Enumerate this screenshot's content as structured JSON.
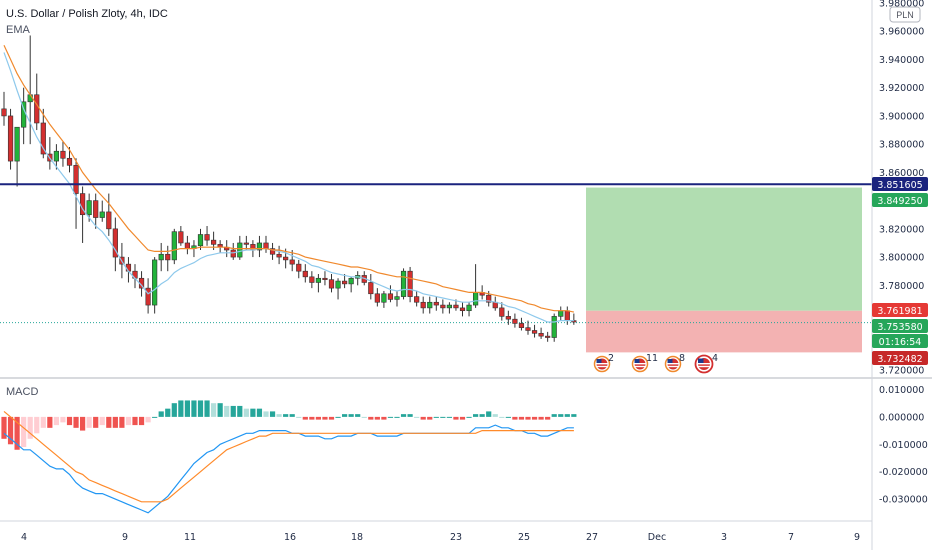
{
  "header": {
    "title": "U.S. Dollar / Polish Zloty, 4h, IDC",
    "indicator": "EMA",
    "currency": "PLN"
  },
  "macd": {
    "label": "MACD"
  },
  "colors": {
    "up": "#26a69a",
    "upBody": "#22b33a",
    "down": "#d32f2f",
    "emaFast": "#8ec9ec",
    "emaSlow": "#f0892d",
    "hline": "#1a237e",
    "profit": "#a9d9a9",
    "loss": "#f2aaaa",
    "macdLine": "#2196f3",
    "signalLine": "#ff8a2a",
    "histUpStrong": "#26a69a",
    "histUpWeak": "#b2dfdb",
    "histDownStrong": "#ef5350",
    "histDownWeak": "#ffcdd2"
  },
  "chart_data": [
    {
      "type": "candlestick",
      "ylim": [
        3.72,
        3.98
      ],
      "y_ticks": [
        "3.980000",
        "3.960000",
        "3.940000",
        "3.920000",
        "3.900000",
        "3.880000",
        "3.860000",
        "3.840000",
        "3.820000",
        "3.800000",
        "3.780000",
        "3.760000",
        "3.740000",
        "3.720000"
      ],
      "x_ticks": [
        "4",
        "9",
        "11",
        "16",
        "18",
        "23",
        "25",
        "27",
        "Dec",
        "3",
        "7",
        "9"
      ],
      "horizontal_line": {
        "value": 3.851605,
        "label": "3.851605"
      },
      "position": {
        "entry": 3.761981,
        "entry_label": "3.761981",
        "take_profit": 3.84925,
        "take_profit_label": "3.849250",
        "stop_loss": 3.732482,
        "stop_loss_label": "3.732482"
      },
      "last_price": {
        "value": 3.75358,
        "label": "3.753580",
        "countdown": "01:16:54"
      },
      "event_counts": [
        "2",
        "11",
        "8",
        "4"
      ],
      "candles": [
        [
          3.905,
          3.917,
          3.893,
          3.9
        ],
        [
          3.9,
          3.905,
          3.862,
          3.868
        ],
        [
          3.868,
          3.89,
          3.85,
          3.892
        ],
        [
          3.892,
          3.92,
          3.88,
          3.91
        ],
        [
          3.91,
          3.957,
          3.88,
          3.915
        ],
        [
          3.915,
          3.93,
          3.89,
          3.895
        ],
        [
          3.895,
          3.905,
          3.87,
          3.873
        ],
        [
          3.873,
          3.885,
          3.862,
          3.868
        ],
        [
          3.868,
          3.88,
          3.862,
          3.875
        ],
        [
          3.875,
          3.882,
          3.864,
          3.87
        ],
        [
          3.87,
          3.878,
          3.86,
          3.865
        ],
        [
          3.865,
          3.87,
          3.82,
          3.845
        ],
        [
          3.845,
          3.85,
          3.81,
          3.83
        ],
        [
          3.83,
          3.845,
          3.825,
          3.84
        ],
        [
          3.84,
          3.845,
          3.82,
          3.828
        ],
        [
          3.828,
          3.84,
          3.825,
          3.832
        ],
        [
          3.832,
          3.845,
          3.815,
          3.82
        ],
        [
          3.82,
          3.828,
          3.79,
          3.8
        ],
        [
          3.8,
          3.81,
          3.785,
          3.795
        ],
        [
          3.795,
          3.8,
          3.782,
          3.79
        ],
        [
          3.79,
          3.795,
          3.778,
          3.785
        ],
        [
          3.785,
          3.79,
          3.772,
          3.778
        ],
        [
          3.778,
          3.785,
          3.76,
          3.766
        ],
        [
          3.766,
          3.8,
          3.76,
          3.798
        ],
        [
          3.798,
          3.81,
          3.79,
          3.802
        ],
        [
          3.802,
          3.808,
          3.79,
          3.798
        ],
        [
          3.798,
          3.82,
          3.795,
          3.818
        ],
        [
          3.818,
          3.822,
          3.808,
          3.81
        ],
        [
          3.81,
          3.815,
          3.802,
          3.806
        ],
        [
          3.806,
          3.812,
          3.8,
          3.808
        ],
        [
          3.808,
          3.82,
          3.805,
          3.816
        ],
        [
          3.816,
          3.822,
          3.808,
          3.812
        ],
        [
          3.812,
          3.818,
          3.805,
          3.809
        ],
        [
          3.809,
          3.812,
          3.803,
          3.807
        ],
        [
          3.807,
          3.812,
          3.8,
          3.805
        ],
        [
          3.805,
          3.81,
          3.798,
          3.8
        ],
        [
          3.8,
          3.815,
          3.798,
          3.81
        ],
        [
          3.81,
          3.815,
          3.805,
          3.809
        ],
        [
          3.809,
          3.812,
          3.8,
          3.805
        ],
        [
          3.805,
          3.815,
          3.8,
          3.81
        ],
        [
          3.81,
          3.815,
          3.803,
          3.806
        ],
        [
          3.806,
          3.81,
          3.798,
          3.802
        ],
        [
          3.802,
          3.808,
          3.795,
          3.8
        ],
        [
          3.8,
          3.806,
          3.792,
          3.798
        ],
        [
          3.798,
          3.805,
          3.79,
          3.795
        ],
        [
          3.795,
          3.798,
          3.785,
          3.79
        ],
        [
          3.79,
          3.795,
          3.782,
          3.786
        ],
        [
          3.786,
          3.79,
          3.778,
          3.782
        ],
        [
          3.782,
          3.788,
          3.775,
          3.785
        ],
        [
          3.785,
          3.79,
          3.78,
          3.784
        ],
        [
          3.784,
          3.788,
          3.775,
          3.778
        ],
        [
          3.778,
          3.785,
          3.77,
          3.783
        ],
        [
          3.783,
          3.788,
          3.778,
          3.781
        ],
        [
          3.781,
          3.786,
          3.775,
          3.785
        ],
        [
          3.785,
          3.79,
          3.78,
          3.787
        ],
        [
          3.787,
          3.79,
          3.78,
          3.782
        ],
        [
          3.782,
          3.788,
          3.77,
          3.774
        ],
        [
          3.774,
          3.778,
          3.765,
          3.768
        ],
        [
          3.768,
          3.776,
          3.764,
          3.774
        ],
        [
          3.774,
          3.78,
          3.768,
          3.77
        ],
        [
          3.77,
          3.776,
          3.765,
          3.772
        ],
        [
          3.772,
          3.792,
          3.77,
          3.79
        ],
        [
          3.79,
          3.793,
          3.768,
          3.772
        ],
        [
          3.772,
          3.776,
          3.765,
          3.768
        ],
        [
          3.768,
          3.772,
          3.76,
          3.764
        ],
        [
          3.764,
          3.772,
          3.76,
          3.768
        ],
        [
          3.768,
          3.772,
          3.762,
          3.766
        ],
        [
          3.766,
          3.77,
          3.76,
          3.764
        ],
        [
          3.764,
          3.768,
          3.76,
          3.766
        ],
        [
          3.766,
          3.77,
          3.762,
          3.764
        ],
        [
          3.764,
          3.768,
          3.758,
          3.762
        ],
        [
          3.762,
          3.768,
          3.758,
          3.766
        ],
        [
          3.766,
          3.795,
          3.764,
          3.775
        ],
        [
          3.775,
          3.78,
          3.77,
          3.773
        ],
        [
          3.773,
          3.776,
          3.765,
          3.768
        ],
        [
          3.768,
          3.772,
          3.762,
          3.764
        ],
        [
          3.764,
          3.768,
          3.755,
          3.758
        ],
        [
          3.758,
          3.762,
          3.752,
          3.756
        ],
        [
          3.756,
          3.76,
          3.75,
          3.753
        ],
        [
          3.753,
          3.757,
          3.748,
          3.75
        ],
        [
          3.75,
          3.755,
          3.745,
          3.748
        ],
        [
          3.748,
          3.752,
          3.743,
          3.746
        ],
        [
          3.746,
          3.75,
          3.742,
          3.744
        ],
        [
          3.744,
          3.747,
          3.74,
          3.743
        ],
        [
          3.743,
          3.76,
          3.74,
          3.758
        ],
        [
          3.758,
          3.765,
          3.755,
          3.762
        ],
        [
          3.762,
          3.765,
          3.752,
          3.755
        ],
        [
          3.755,
          3.76,
          3.752,
          3.754
        ]
      ],
      "ema_fast": [
        3.945,
        3.932,
        3.918,
        3.905,
        3.895,
        3.885,
        3.877,
        3.87,
        3.864,
        3.858,
        3.852,
        3.843,
        3.834,
        3.828,
        3.822,
        3.818,
        3.812,
        3.805,
        3.797,
        3.79,
        3.785,
        3.78,
        3.774,
        3.777,
        3.781,
        3.784,
        3.789,
        3.792,
        3.794,
        3.796,
        3.799,
        3.801,
        3.802,
        3.803,
        3.803,
        3.803,
        3.804,
        3.805,
        3.805,
        3.806,
        3.806,
        3.805,
        3.804,
        3.803,
        3.801,
        3.799,
        3.797,
        3.794,
        3.793,
        3.791,
        3.789,
        3.788,
        3.787,
        3.786,
        3.786,
        3.785,
        3.783,
        3.781,
        3.779,
        3.777,
        3.776,
        3.777,
        3.777,
        3.776,
        3.774,
        3.773,
        3.772,
        3.771,
        3.77,
        3.769,
        3.768,
        3.768,
        3.769,
        3.769,
        3.769,
        3.768,
        3.767,
        3.765,
        3.764,
        3.762,
        3.76,
        3.758,
        3.756,
        3.754,
        3.754,
        3.755,
        3.755,
        3.755
      ],
      "ema_slow": [
        3.95,
        3.94,
        3.93,
        3.922,
        3.915,
        3.908,
        3.901,
        3.894,
        3.888,
        3.882,
        3.876,
        3.868,
        3.86,
        3.854,
        3.848,
        3.843,
        3.838,
        3.832,
        3.826,
        3.82,
        3.815,
        3.81,
        3.805,
        3.804,
        3.804,
        3.804,
        3.805,
        3.806,
        3.806,
        3.806,
        3.807,
        3.807,
        3.807,
        3.807,
        3.807,
        3.806,
        3.806,
        3.806,
        3.806,
        3.806,
        3.806,
        3.805,
        3.805,
        3.804,
        3.803,
        3.802,
        3.8,
        3.799,
        3.798,
        3.797,
        3.796,
        3.795,
        3.794,
        3.793,
        3.793,
        3.792,
        3.791,
        3.789,
        3.788,
        3.787,
        3.786,
        3.786,
        3.785,
        3.784,
        3.783,
        3.782,
        3.781,
        3.779,
        3.778,
        3.777,
        3.776,
        3.775,
        3.775,
        3.775,
        3.774,
        3.773,
        3.772,
        3.771,
        3.77,
        3.769,
        3.767,
        3.766,
        3.764,
        3.763,
        3.762,
        3.762,
        3.762,
        3.761
      ]
    },
    {
      "type": "macd",
      "ylim": [
        -0.038,
        0.012
      ],
      "y_ticks": [
        "0.010000",
        "0.000000",
        "-0.010000",
        "-0.020000",
        "-0.030000"
      ],
      "histogram": [
        -0.008,
        -0.01,
        -0.012,
        -0.011,
        -0.008,
        -0.006,
        -0.004,
        -0.004,
        -0.003,
        -0.002,
        -0.003,
        -0.004,
        -0.005,
        -0.004,
        -0.004,
        -0.003,
        -0.004,
        -0.004,
        -0.004,
        -0.003,
        -0.003,
        -0.003,
        -0.002,
        0.0,
        0.002,
        0.003,
        0.005,
        0.006,
        0.006,
        0.006,
        0.006,
        0.006,
        0.005,
        0.005,
        0.004,
        0.004,
        0.004,
        0.003,
        0.003,
        0.003,
        0.002,
        0.002,
        0.001,
        0.001,
        0.001,
        0.0,
        -0.001,
        -0.001,
        -0.001,
        -0.001,
        -0.001,
        0.0,
        0.001,
        0.001,
        0.001,
        0.0,
        -0.001,
        -0.001,
        -0.001,
        0.0,
        0.0,
        0.001,
        0.001,
        0.0,
        -0.001,
        -0.001,
        0.0,
        0.0,
        0.0,
        -0.001,
        -0.001,
        0.0,
        0.001,
        0.001,
        0.002,
        0.001,
        0.0,
        0.0,
        -0.001,
        -0.001,
        -0.001,
        -0.001,
        -0.001,
        -0.001,
        0.001,
        0.001,
        0.001,
        0.001
      ],
      "macd_line": [
        -0.006,
        -0.008,
        -0.01,
        -0.012,
        -0.012,
        -0.014,
        -0.016,
        -0.018,
        -0.019,
        -0.019,
        -0.021,
        -0.024,
        -0.026,
        -0.027,
        -0.028,
        -0.028,
        -0.029,
        -0.03,
        -0.031,
        -0.032,
        -0.033,
        -0.034,
        -0.035,
        -0.033,
        -0.031,
        -0.029,
        -0.026,
        -0.023,
        -0.02,
        -0.017,
        -0.015,
        -0.013,
        -0.012,
        -0.01,
        -0.009,
        -0.008,
        -0.007,
        -0.006,
        -0.006,
        -0.005,
        -0.005,
        -0.005,
        -0.005,
        -0.005,
        -0.006,
        -0.006,
        -0.007,
        -0.007,
        -0.007,
        -0.008,
        -0.008,
        -0.007,
        -0.007,
        -0.007,
        -0.006,
        -0.006,
        -0.006,
        -0.007,
        -0.007,
        -0.007,
        -0.007,
        -0.006,
        -0.006,
        -0.006,
        -0.006,
        -0.006,
        -0.006,
        -0.006,
        -0.006,
        -0.006,
        -0.006,
        -0.006,
        -0.004,
        -0.004,
        -0.004,
        -0.003,
        -0.004,
        -0.004,
        -0.005,
        -0.005,
        -0.006,
        -0.006,
        -0.007,
        -0.007,
        -0.006,
        -0.005,
        -0.004,
        -0.004
      ],
      "signal_line": [
        0.002,
        0.0,
        -0.002,
        -0.004,
        -0.006,
        -0.008,
        -0.01,
        -0.012,
        -0.014,
        -0.016,
        -0.018,
        -0.02,
        -0.021,
        -0.023,
        -0.024,
        -0.025,
        -0.026,
        -0.027,
        -0.028,
        -0.029,
        -0.03,
        -0.031,
        -0.031,
        -0.031,
        -0.031,
        -0.03,
        -0.028,
        -0.026,
        -0.024,
        -0.022,
        -0.02,
        -0.018,
        -0.016,
        -0.014,
        -0.012,
        -0.011,
        -0.01,
        -0.009,
        -0.008,
        -0.007,
        -0.007,
        -0.006,
        -0.006,
        -0.006,
        -0.006,
        -0.006,
        -0.006,
        -0.006,
        -0.006,
        -0.006,
        -0.006,
        -0.006,
        -0.006,
        -0.006,
        -0.006,
        -0.006,
        -0.006,
        -0.006,
        -0.006,
        -0.006,
        -0.006,
        -0.006,
        -0.006,
        -0.006,
        -0.006,
        -0.006,
        -0.006,
        -0.006,
        -0.006,
        -0.006,
        -0.006,
        -0.006,
        -0.006,
        -0.005,
        -0.005,
        -0.005,
        -0.005,
        -0.005,
        -0.005,
        -0.005,
        -0.005,
        -0.005,
        -0.005,
        -0.005,
        -0.005,
        -0.005,
        -0.005,
        -0.005
      ]
    }
  ]
}
